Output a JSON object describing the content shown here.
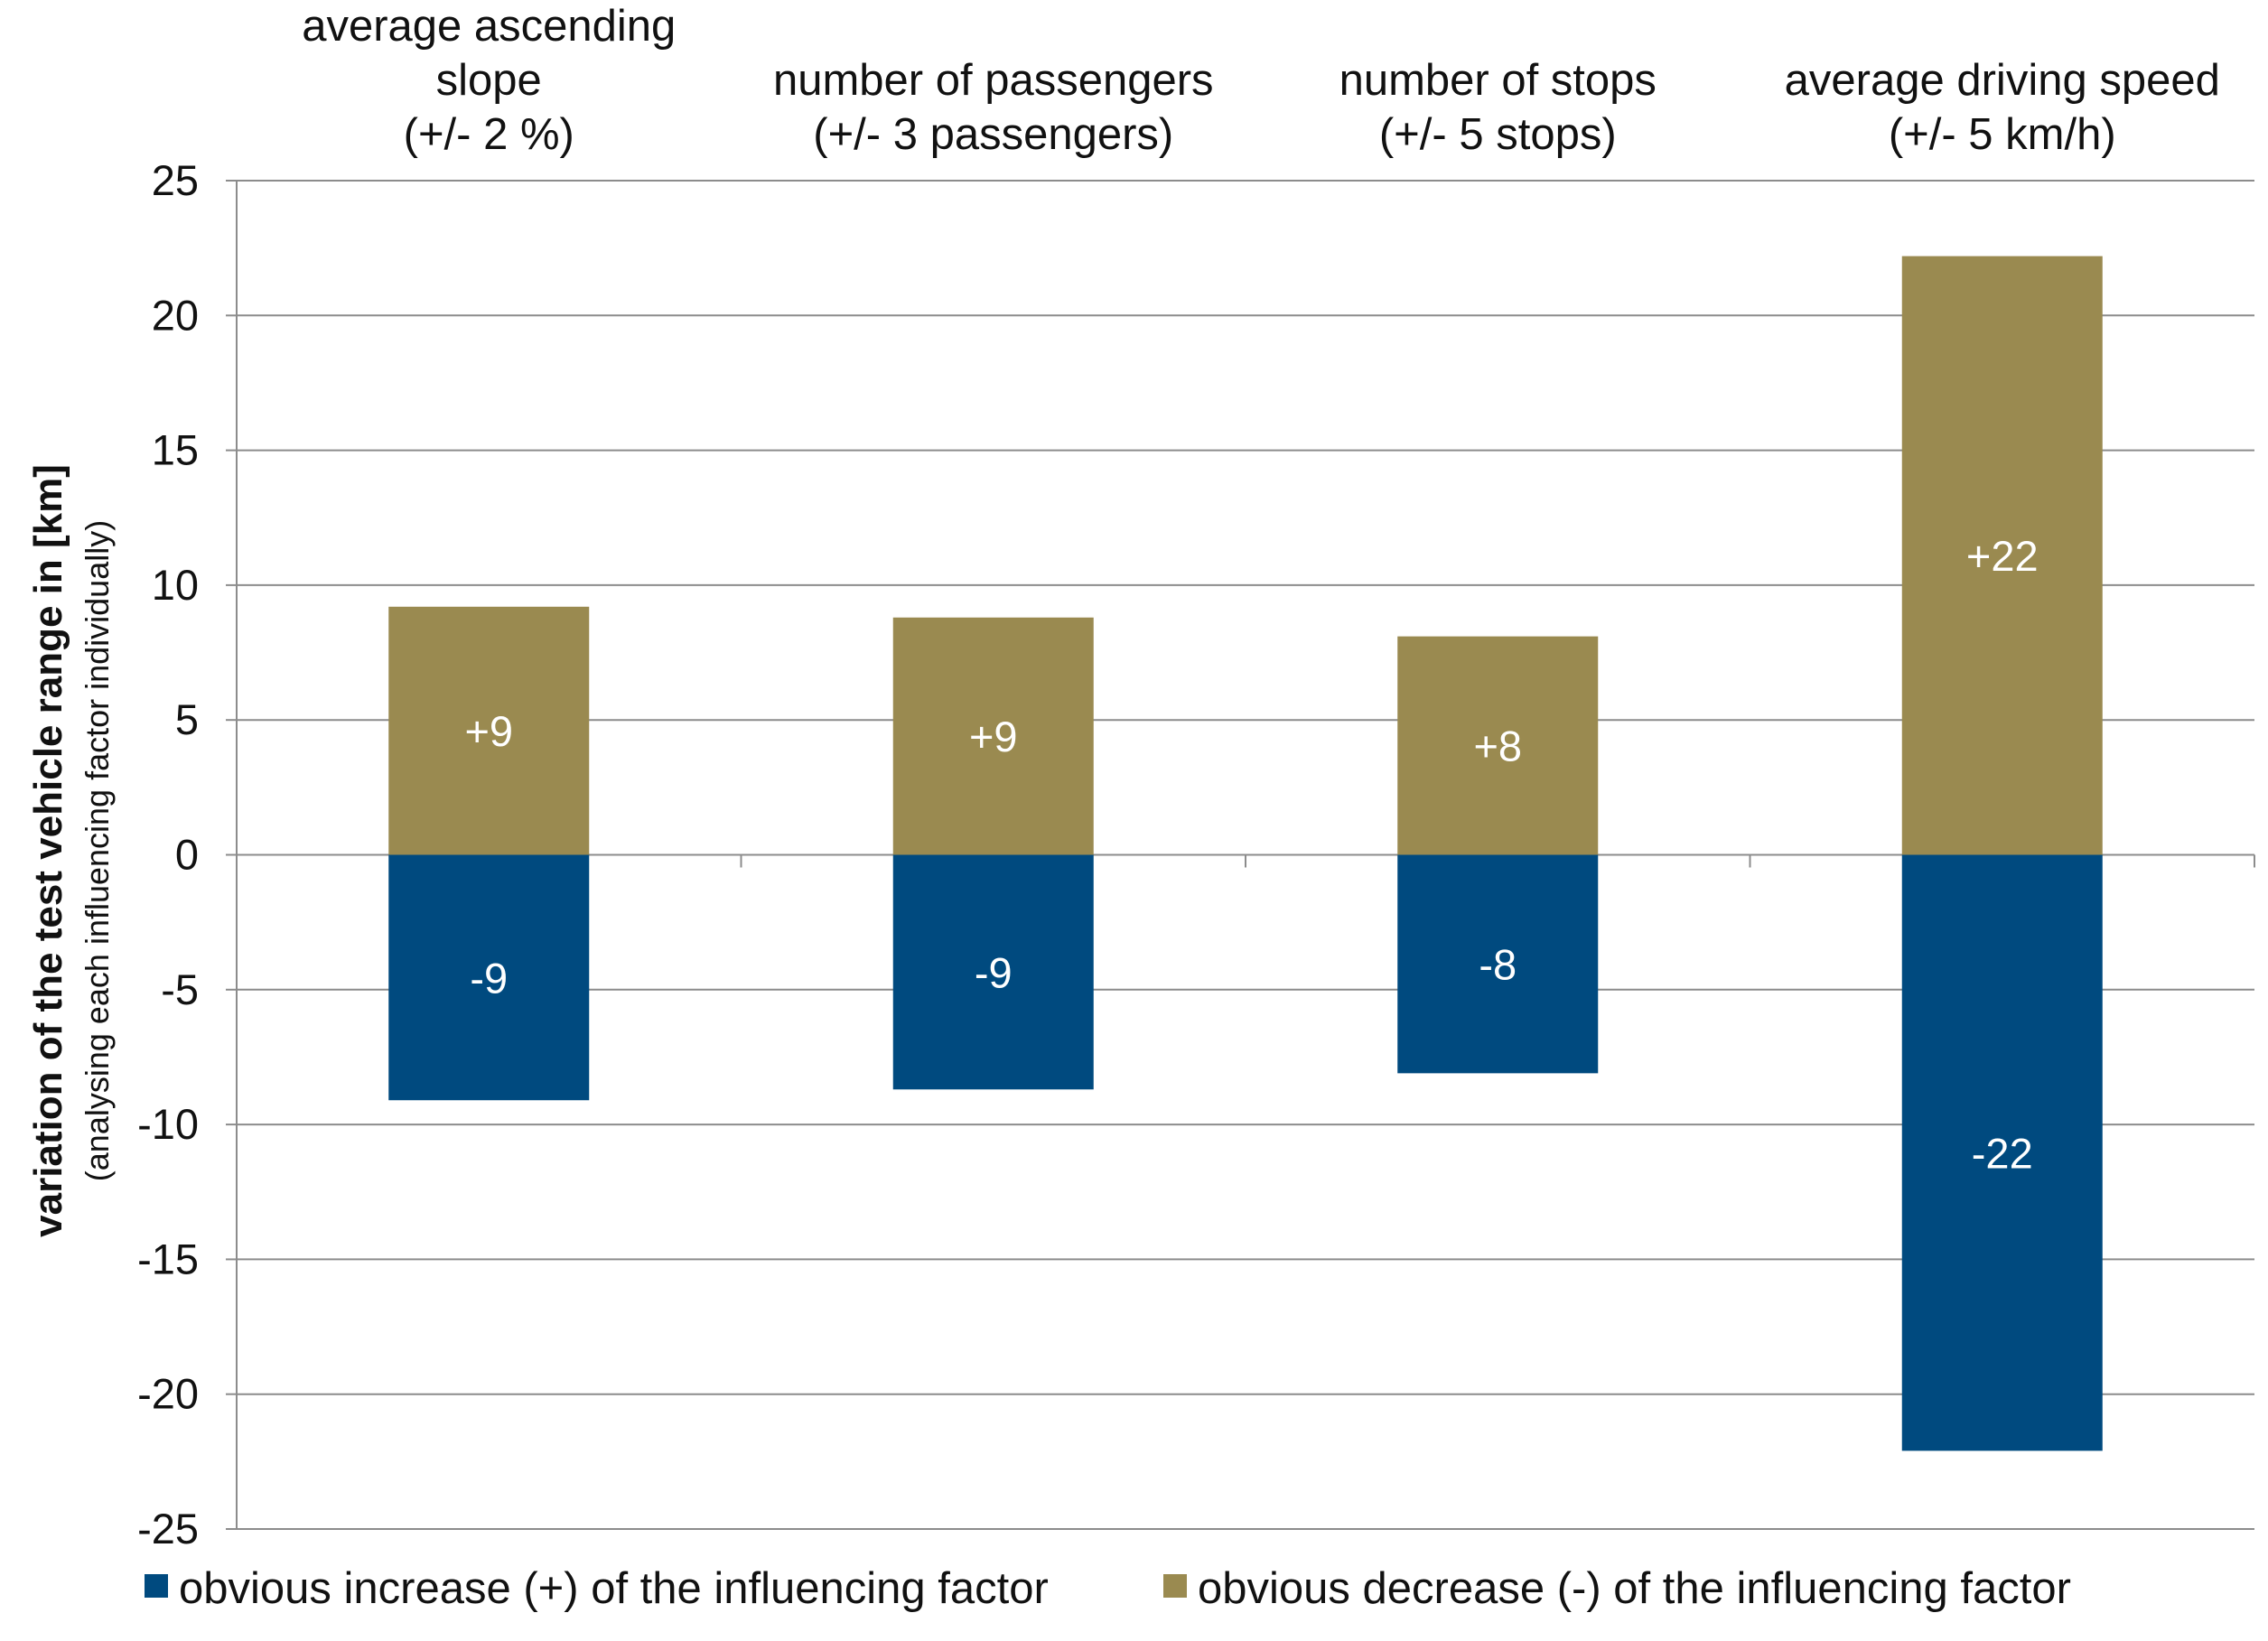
{
  "chart_data": {
    "type": "bar",
    "stacked": true,
    "categories": [
      [
        "average ascending",
        "slope",
        "(+/- 2 %)"
      ],
      [
        "number of passengers",
        "(+/- 3 passengers)"
      ],
      [
        "number of stops",
        "(+/- 5 stops)"
      ],
      [
        "average driving speed",
        "(+/- 5 km/h)"
      ]
    ],
    "series": [
      {
        "name": "obvious increase (+) of the influencing factor",
        "color": "#004a7f",
        "values": [
          -9.1,
          -8.7,
          -8.1,
          -22.1
        ],
        "labels": [
          "-9",
          "-9",
          "-8",
          "-22"
        ]
      },
      {
        "name": "obvious decrease (-) of the influencing factor",
        "color": "#9a8a50",
        "values": [
          9.2,
          8.8,
          8.1,
          22.2
        ],
        "labels": [
          "+9",
          "+9",
          "+8",
          "+22"
        ]
      }
    ],
    "ylabel": "variation of the test vehicle range in [km]",
    "ylabel_sub": "(analysing each influencing factor individually)",
    "ylim": [
      -25,
      25
    ],
    "yticks": [
      25,
      20,
      15,
      10,
      5,
      0,
      -5,
      -10,
      -15,
      -20,
      -25
    ],
    "grid": true,
    "legend_position": "bottom"
  }
}
